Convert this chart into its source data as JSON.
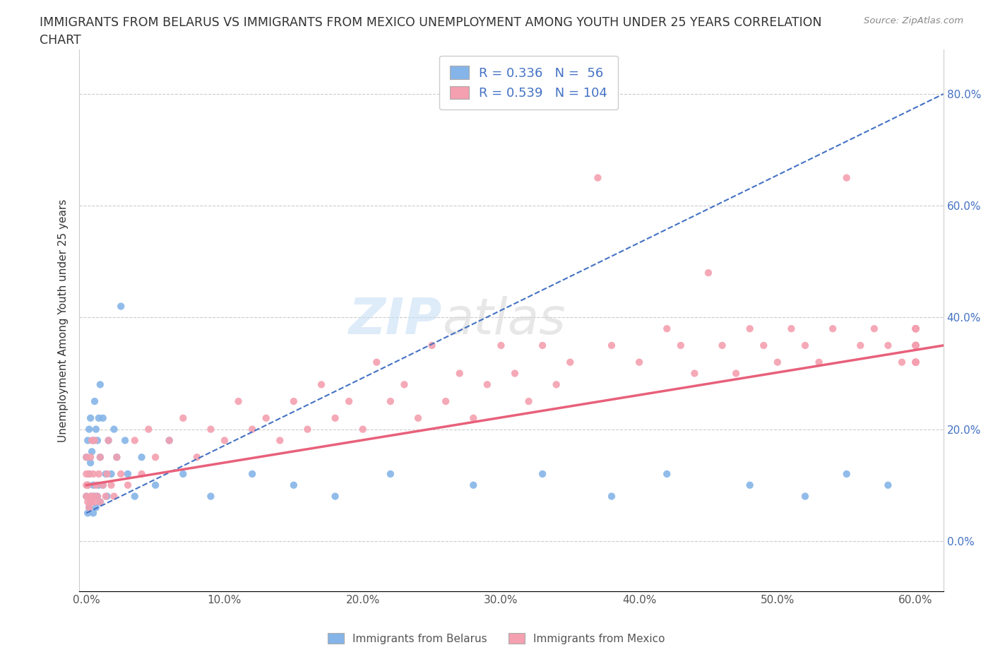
{
  "title_line1": "IMMIGRANTS FROM BELARUS VS IMMIGRANTS FROM MEXICO UNEMPLOYMENT AMONG YOUTH UNDER 25 YEARS CORRELATION",
  "title_line2": "CHART",
  "source": "Source: ZipAtlas.com",
  "ylabel": "Unemployment Among Youth under 25 years",
  "xlim": [
    -0.005,
    0.62
  ],
  "ylim": [
    -0.09,
    0.88
  ],
  "xticks": [
    0.0,
    0.1,
    0.2,
    0.3,
    0.4,
    0.5,
    0.6
  ],
  "xticklabels": [
    "0.0%",
    "10.0%",
    "20.0%",
    "30.0%",
    "40.0%",
    "50.0%",
    "60.0%"
  ],
  "yticks": [
    0.0,
    0.2,
    0.4,
    0.6,
    0.8
  ],
  "yticklabels": [
    "0.0%",
    "20.0%",
    "40.0%",
    "60.0%",
    "80.0%"
  ],
  "belarus_color": "#85b5e8",
  "mexico_color": "#f4a0b0",
  "belarus_line_color": "#4472c4",
  "mexico_line_color": "#e8607a",
  "R_belarus": 0.336,
  "N_belarus": 56,
  "R_mexico": 0.539,
  "N_mexico": 104,
  "legend_label_belarus": "Immigrants from Belarus",
  "legend_label_mexico": "Immigrants from Mexico",
  "watermark_left": "ZIP",
  "watermark_right": "atlas",
  "belarus_x": [
    0.0,
    0.0,
    0.001,
    0.001,
    0.001,
    0.002,
    0.002,
    0.002,
    0.003,
    0.003,
    0.003,
    0.004,
    0.004,
    0.005,
    0.005,
    0.005,
    0.006,
    0.006,
    0.007,
    0.007,
    0.008,
    0.008,
    0.009,
    0.009,
    0.01,
    0.01,
    0.01,
    0.012,
    0.012,
    0.014,
    0.015,
    0.016,
    0.018,
    0.02,
    0.022,
    0.025,
    0.028,
    0.03,
    0.035,
    0.04,
    0.05,
    0.06,
    0.07,
    0.09,
    0.12,
    0.15,
    0.18,
    0.22,
    0.28,
    0.33,
    0.38,
    0.42,
    0.48,
    0.52,
    0.55,
    0.58
  ],
  "belarus_y": [
    0.08,
    0.15,
    0.05,
    0.1,
    0.18,
    0.06,
    0.12,
    0.2,
    0.07,
    0.14,
    0.22,
    0.08,
    0.16,
    0.05,
    0.1,
    0.18,
    0.08,
    0.25,
    0.06,
    0.2,
    0.08,
    0.18,
    0.1,
    0.22,
    0.07,
    0.15,
    0.28,
    0.1,
    0.22,
    0.12,
    0.08,
    0.18,
    0.12,
    0.2,
    0.15,
    0.42,
    0.18,
    0.12,
    0.08,
    0.15,
    0.1,
    0.18,
    0.12,
    0.08,
    0.12,
    0.1,
    0.08,
    0.12,
    0.1,
    0.12,
    0.08,
    0.12,
    0.1,
    0.08,
    0.12,
    0.1
  ],
  "mexico_x": [
    0.0,
    0.0,
    0.0,
    0.0,
    0.001,
    0.001,
    0.002,
    0.002,
    0.003,
    0.003,
    0.004,
    0.004,
    0.005,
    0.005,
    0.006,
    0.006,
    0.007,
    0.008,
    0.009,
    0.01,
    0.01,
    0.012,
    0.014,
    0.015,
    0.016,
    0.018,
    0.02,
    0.022,
    0.025,
    0.03,
    0.035,
    0.04,
    0.045,
    0.05,
    0.06,
    0.07,
    0.08,
    0.09,
    0.1,
    0.11,
    0.12,
    0.13,
    0.14,
    0.15,
    0.16,
    0.17,
    0.18,
    0.19,
    0.2,
    0.21,
    0.22,
    0.23,
    0.24,
    0.25,
    0.26,
    0.27,
    0.28,
    0.29,
    0.3,
    0.31,
    0.32,
    0.33,
    0.34,
    0.35,
    0.37,
    0.38,
    0.4,
    0.42,
    0.43,
    0.44,
    0.45,
    0.46,
    0.47,
    0.48,
    0.49,
    0.5,
    0.51,
    0.52,
    0.53,
    0.54,
    0.55,
    0.56,
    0.57,
    0.58,
    0.59,
    0.6,
    0.6,
    0.6,
    0.6,
    0.6,
    0.6,
    0.6,
    0.6,
    0.6,
    0.6,
    0.6,
    0.6,
    0.6,
    0.6,
    0.6,
    0.6,
    0.6,
    0.6,
    0.6
  ],
  "mexico_y": [
    0.08,
    0.1,
    0.12,
    0.15,
    0.07,
    0.1,
    0.06,
    0.12,
    0.08,
    0.15,
    0.07,
    0.18,
    0.08,
    0.12,
    0.07,
    0.18,
    0.1,
    0.08,
    0.12,
    0.07,
    0.15,
    0.1,
    0.08,
    0.12,
    0.18,
    0.1,
    0.08,
    0.15,
    0.12,
    0.1,
    0.18,
    0.12,
    0.2,
    0.15,
    0.18,
    0.22,
    0.15,
    0.2,
    0.18,
    0.25,
    0.2,
    0.22,
    0.18,
    0.25,
    0.2,
    0.28,
    0.22,
    0.25,
    0.2,
    0.32,
    0.25,
    0.28,
    0.22,
    0.35,
    0.25,
    0.3,
    0.22,
    0.28,
    0.35,
    0.3,
    0.25,
    0.35,
    0.28,
    0.32,
    0.65,
    0.35,
    0.32,
    0.38,
    0.35,
    0.3,
    0.48,
    0.35,
    0.3,
    0.38,
    0.35,
    0.32,
    0.38,
    0.35,
    0.32,
    0.38,
    0.65,
    0.35,
    0.38,
    0.35,
    0.32,
    0.38,
    0.35,
    0.32,
    0.38,
    0.35,
    0.32,
    0.38,
    0.35,
    0.32,
    0.38,
    0.35,
    0.32,
    0.38,
    0.35,
    0.32,
    0.38,
    0.35,
    0.32,
    0.38
  ]
}
